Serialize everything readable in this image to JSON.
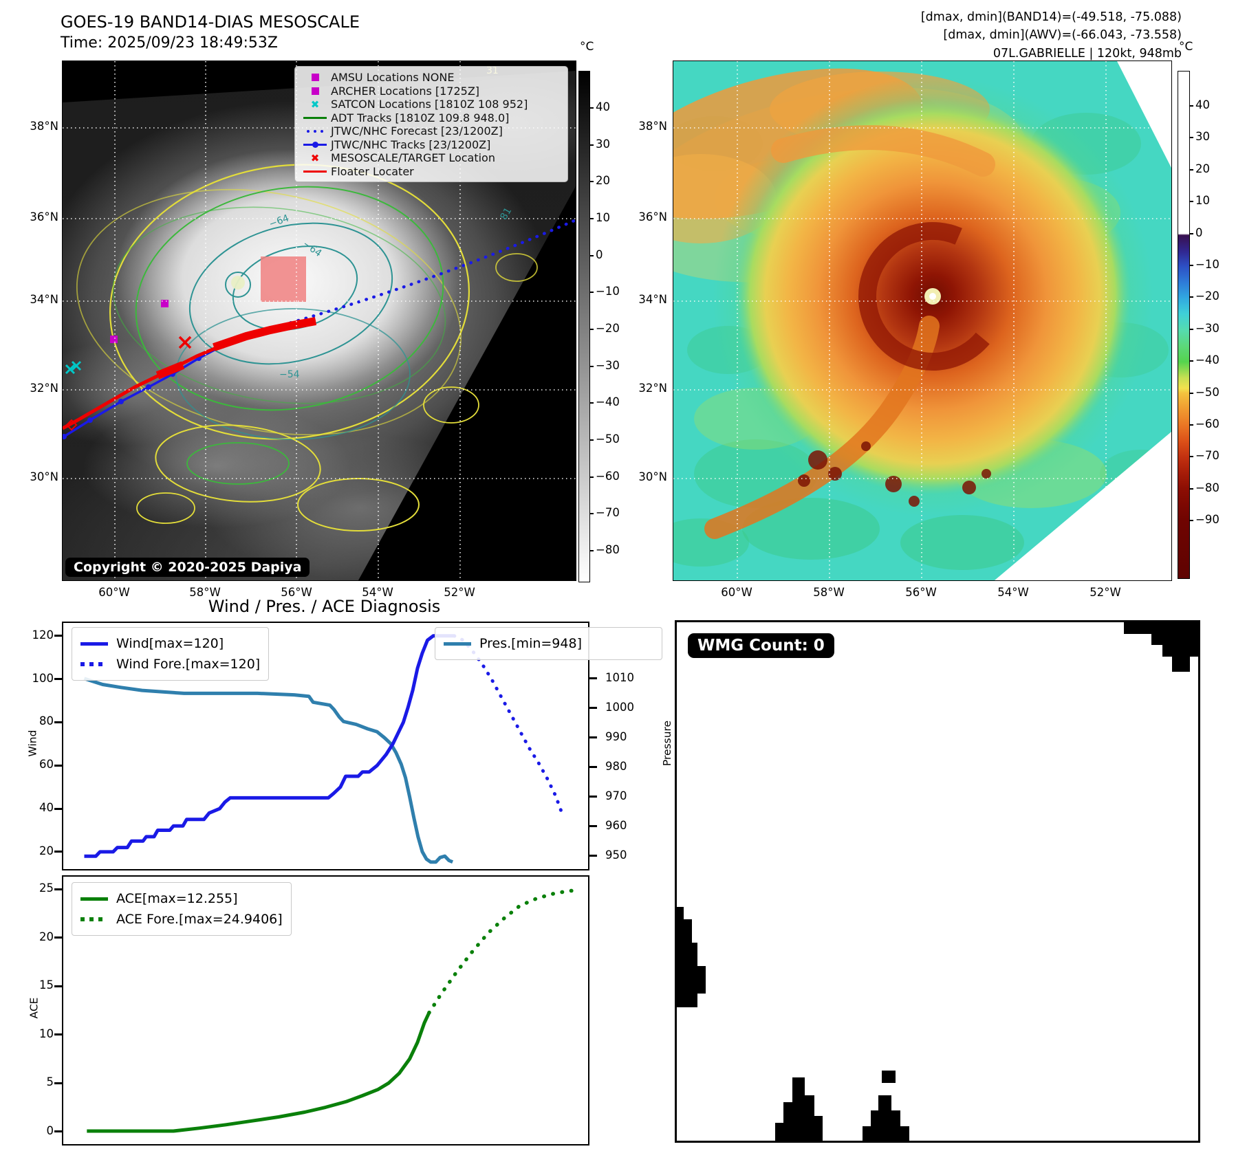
{
  "header": {
    "title": "GOES-19 BAND14-DIAS MESOSCALE",
    "time": "Time: 2025/09/23 18:49:53Z",
    "info_lines": [
      "[dmax, dmin](BAND14)=(-49.518, -75.088)",
      "[dmax, dmin](AWV)=(-66.043, -73.558)",
      "07L.GABRIELLE | 120kt, 948mb"
    ]
  },
  "left_map": {
    "legend_items": [
      "AMSU Locations NONE",
      "ARCHER Locations [1725Z]",
      "SATCON Locations [1810Z 108 952]",
      "ADT Tracks [1810Z 109.8 948.0]",
      "JTWC/NHC Forecast [23/1200Z]",
      "JTWC/NHC Tracks [23/1200Z]",
      "MESOSCALE/TARGET Location",
      "Floater Locater"
    ],
    "copyright": "Copyright © 2020-2025 Dapiya",
    "lat_ticks": [
      "38°N",
      "36°N",
      "34°N",
      "32°N",
      "30°N"
    ],
    "lon_ticks": [
      "60°W",
      "58°W",
      "56°W",
      "54°W",
      "52°W"
    ],
    "contour_labels": [
      "−64",
      "−64",
      "−54",
      "31",
      "81"
    ],
    "colorbar": {
      "unit": "°C",
      "ticks": [
        "40",
        "30",
        "20",
        "10",
        "0",
        "−10",
        "−20",
        "−30",
        "−40",
        "−50",
        "−60",
        "−70",
        "−80"
      ]
    }
  },
  "right_map": {
    "lat_ticks": [
      "38°N",
      "36°N",
      "34°N",
      "32°N",
      "30°N"
    ],
    "lon_ticks": [
      "60°W",
      "58°W",
      "56°W",
      "54°W",
      "52°W"
    ],
    "colorbar": {
      "unit": "°C",
      "ticks": [
        "40",
        "30",
        "20",
        "10",
        "0",
        "−10",
        "−20",
        "−30",
        "−40",
        "−50",
        "−60",
        "−70",
        "−80",
        "−90"
      ]
    }
  },
  "charts": {
    "section_title": "Wind / Pres. / ACE Diagnosis",
    "top": {
      "ylabel": "Wind",
      "yticks": [
        "120",
        "100",
        "80",
        "60",
        "40",
        "20"
      ],
      "y2label": "Pressure",
      "y2ticks": [
        "1010",
        "1000",
        "990",
        "980",
        "970",
        "960",
        "950"
      ],
      "legend": [
        "Wind[max=120]",
        "Wind Fore.[max=120]"
      ],
      "pres_legend": "Pres.[min=948]"
    },
    "bottom": {
      "ylabel": "ACE",
      "yticks": [
        "25",
        "20",
        "15",
        "10",
        "5",
        "0"
      ],
      "legend": [
        "ACE[max=12.255]",
        "ACE Fore.[max=24.9406]"
      ]
    }
  },
  "wmg": {
    "count_label": "WMG Count: 0"
  },
  "colors": {
    "wind_blue": "#1a1ae6",
    "pressure_steel": "#2f7fad",
    "ace_green": "#0a800a",
    "track_red": "#ee0000",
    "archer_magenta": "#c800c8",
    "satcon_cyan": "#00c8c8"
  },
  "chart_data": [
    {
      "type": "line",
      "title": "Wind / Pres. / ACE Diagnosis (upper panel: wind & pressure vs time)",
      "xlabel": "",
      "axes": {
        "wind": {
          "min": 12,
          "max": 126
        },
        "pressure": {
          "min": 945.6,
          "max": 1028.8
        }
      },
      "series": [
        {
          "name": "Wind[max=120]",
          "style": "solid",
          "axis": "wind",
          "x": [
            0.04,
            0.062,
            0.07,
            0.095,
            0.103,
            0.122,
            0.13,
            0.152,
            0.158,
            0.173,
            0.18,
            0.203,
            0.21,
            0.228,
            0.235,
            0.268,
            0.278,
            0.298,
            0.308,
            0.318,
            0.505,
            0.515,
            0.528,
            0.538,
            0.562,
            0.57,
            0.583,
            0.598,
            0.615,
            0.628,
            0.638,
            0.648,
            0.657,
            0.666,
            0.675,
            0.684,
            0.694,
            0.705,
            0.745
          ],
          "y": [
            18,
            18,
            20,
            20,
            22,
            22,
            25,
            25,
            27,
            27,
            30,
            30,
            32,
            32,
            35,
            35,
            38,
            40,
            43,
            45,
            45,
            47,
            50,
            55,
            55,
            57,
            57,
            60,
            65,
            70,
            75,
            80,
            87,
            95,
            105,
            112,
            118,
            120,
            120
          ]
        },
        {
          "name": "Wind Fore.[max=120]",
          "style": "dotted",
          "axis": "wind",
          "x": [
            0.745,
            0.762,
            0.78,
            0.798,
            0.816,
            0.834,
            0.852,
            0.87,
            0.888,
            0.906,
            0.922,
            0.938,
            0.95
          ],
          "y": [
            120,
            118,
            113,
            107,
            100,
            92,
            84,
            76,
            68,
            61,
            54,
            46,
            38
          ]
        },
        {
          "name": "Pres.[min=948]",
          "style": "solid",
          "axis": "pressure",
          "x": [
            0.04,
            0.075,
            0.11,
            0.15,
            0.19,
            0.23,
            0.3,
            0.37,
            0.44,
            0.468,
            0.476,
            0.508,
            0.516,
            0.526,
            0.534,
            0.558,
            0.58,
            0.598,
            0.612,
            0.624,
            0.634,
            0.644,
            0.652,
            0.66,
            0.668,
            0.676,
            0.684,
            0.692,
            0.7,
            0.71,
            0.718,
            0.727,
            0.735,
            0.742
          ],
          "y": [
            1010,
            1008,
            1007,
            1006,
            1005.5,
            1005,
            1005,
            1005,
            1004.5,
            1004,
            1002,
            1001,
            999.5,
            997,
            995.5,
            994.5,
            993,
            992,
            990,
            988,
            985,
            981,
            976.5,
            970,
            963,
            956.5,
            951.5,
            949,
            948,
            948,
            949.5,
            950,
            948.5,
            948
          ]
        }
      ]
    },
    {
      "type": "line",
      "title": "Wind / Pres. / ACE Diagnosis (lower panel: ACE vs time)",
      "xlabel": "",
      "axes": {
        "ace": {
          "min": -1.3,
          "max": 26.3
        }
      },
      "series": [
        {
          "name": "ACE[max=12.255]",
          "style": "solid",
          "axis": "ace",
          "x": [
            0.045,
            0.1,
            0.16,
            0.21,
            0.26,
            0.31,
            0.36,
            0.41,
            0.46,
            0.5,
            0.54,
            0.57,
            0.6,
            0.62,
            0.64,
            0.66,
            0.675,
            0.688,
            0.697
          ],
          "y": [
            0.05,
            0.05,
            0.05,
            0.05,
            0.35,
            0.7,
            1.1,
            1.5,
            2.0,
            2.5,
            3.1,
            3.7,
            4.35,
            5.0,
            6.0,
            7.5,
            9.2,
            11.2,
            12.255
          ]
        },
        {
          "name": "ACE Fore.[max=24.9406]",
          "style": "dotted",
          "axis": "ace",
          "x": [
            0.697,
            0.72,
            0.75,
            0.78,
            0.81,
            0.84,
            0.87,
            0.9,
            0.93,
            0.96,
            0.985
          ],
          "y": [
            12.255,
            14.2,
            16.5,
            18.6,
            20.5,
            22.0,
            23.3,
            24.0,
            24.5,
            24.8,
            24.94
          ]
        }
      ]
    }
  ]
}
